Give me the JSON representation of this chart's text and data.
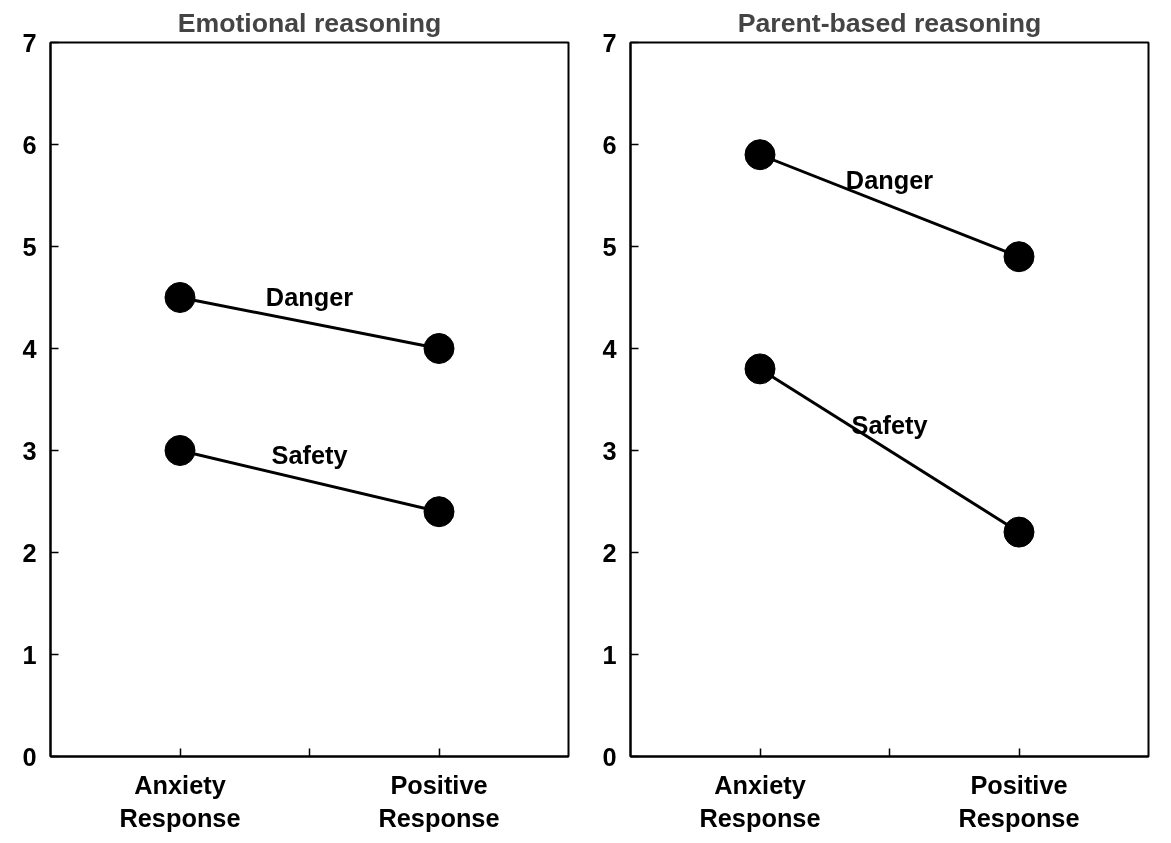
{
  "chart_data": [
    {
      "type": "line",
      "title": "Emotional reasoning",
      "categories": [
        "Anxiety Response",
        "Positive Response"
      ],
      "ylim": [
        0,
        7
      ],
      "yticks": [
        0,
        1,
        2,
        3,
        4,
        5,
        6,
        7
      ],
      "marker": "circle",
      "line_style": "solid",
      "series": [
        {
          "name": "Danger",
          "color": "#000000",
          "values": [
            4.5,
            4.0
          ]
        },
        {
          "name": "Safety",
          "color": "#000000",
          "values": [
            3.0,
            2.4
          ]
        }
      ]
    },
    {
      "type": "line",
      "title": "Parent-based reasoning",
      "categories": [
        "Anxiety Response",
        "Positive Response"
      ],
      "ylim": [
        0,
        7
      ],
      "yticks": [
        0,
        1,
        2,
        3,
        4,
        5,
        6,
        7
      ],
      "marker": "circle",
      "line_style": "solid",
      "series": [
        {
          "name": "Danger",
          "color": "#000000",
          "values": [
            5.9,
            4.9
          ]
        },
        {
          "name": "Safety",
          "color": "#000000",
          "values": [
            3.8,
            2.2
          ]
        }
      ]
    }
  ]
}
